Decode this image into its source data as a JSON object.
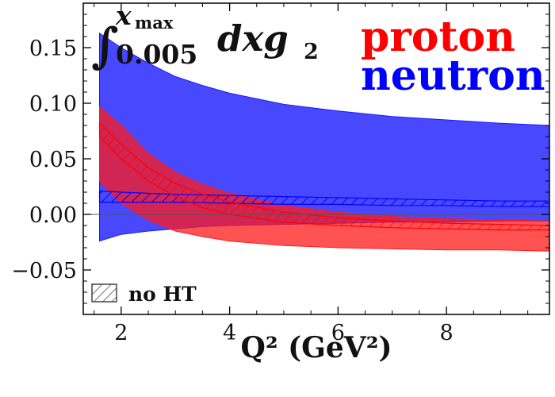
{
  "chart_data": {
    "type": "area",
    "title_expression": {
      "integral_sign": "∫",
      "upper_limit": "x",
      "upper_limit_sub": "max",
      "lower_limit": "0.005",
      "integrand": "dxg",
      "integrand_sub": "2"
    },
    "xlabel": "Q² (GeV²)",
    "ylabel": "",
    "xlim": [
      1.3,
      9.9
    ],
    "ylim": [
      -0.09,
      0.19
    ],
    "xticks": [
      2,
      4,
      6,
      8
    ],
    "xtick_labels": [
      "2",
      "4",
      "6",
      "8"
    ],
    "yticks": [
      -0.05,
      0.0,
      0.05,
      0.1,
      0.15
    ],
    "ytick_labels": [
      "−0.05",
      "0.00",
      "0.05",
      "0.10",
      "0.15"
    ],
    "zero_line": true,
    "grid": false,
    "legend": {
      "placement": "top-right",
      "entries": [
        {
          "label": "proton",
          "color": "#ff0000"
        },
        {
          "label": "neutron",
          "color": "#0000ff"
        }
      ]
    },
    "hatch_legend": {
      "label": "no HT",
      "placement": "bottom-left"
    },
    "series": [
      {
        "name": "neutron",
        "style": "band",
        "color": "#1a1aff",
        "x": [
          1.6,
          2.0,
          2.5,
          3.0,
          3.5,
          4.0,
          5.0,
          6.0,
          7.0,
          8.0,
          9.0,
          9.9
        ],
        "upper": [
          0.163,
          0.15,
          0.136,
          0.124,
          0.116,
          0.109,
          0.099,
          0.093,
          0.088,
          0.085,
          0.082,
          0.08
        ],
        "lower": [
          -0.024,
          -0.018,
          -0.015,
          -0.013,
          -0.011,
          -0.01,
          -0.009,
          -0.008,
          -0.007,
          -0.007,
          -0.006,
          -0.006
        ]
      },
      {
        "name": "proton",
        "style": "band",
        "color": "#ff1a1a",
        "x": [
          1.6,
          2.0,
          2.5,
          3.0,
          3.5,
          4.0,
          5.0,
          6.0,
          7.0,
          8.0,
          9.0,
          9.9
        ],
        "upper": [
          0.097,
          0.08,
          0.055,
          0.038,
          0.027,
          0.019,
          0.008,
          0.002,
          -0.002,
          -0.004,
          -0.005,
          -0.006
        ],
        "lower": [
          0.03,
          0.01,
          -0.005,
          -0.015,
          -0.02,
          -0.024,
          -0.028,
          -0.03,
          -0.031,
          -0.032,
          -0.032,
          -0.033
        ]
      },
      {
        "name": "neutron (no HT)",
        "style": "hatched",
        "color": "#0000ff",
        "x": [
          1.6,
          2.0,
          3.0,
          4.0,
          5.0,
          6.0,
          7.0,
          8.0,
          9.0,
          9.9
        ],
        "upper": [
          0.021,
          0.02,
          0.018,
          0.017,
          0.016,
          0.015,
          0.014,
          0.013,
          0.012,
          0.012
        ],
        "lower": [
          0.011,
          0.011,
          0.011,
          0.01,
          0.009,
          0.009,
          0.008,
          0.008,
          0.007,
          0.007
        ]
      },
      {
        "name": "proton (no HT)",
        "style": "hatched",
        "color": "#ff0000",
        "x": [
          1.6,
          2.0,
          2.5,
          3.0,
          3.5,
          4.0,
          5.0,
          6.0,
          7.0,
          8.0,
          9.0,
          9.9
        ],
        "upper": [
          0.082,
          0.063,
          0.042,
          0.028,
          0.018,
          0.011,
          0.002,
          -0.003,
          -0.006,
          -0.008,
          -0.009,
          -0.01
        ],
        "lower": [
          0.07,
          0.05,
          0.03,
          0.016,
          0.006,
          0.0,
          -0.007,
          -0.01,
          -0.012,
          -0.013,
          -0.014,
          -0.014
        ]
      }
    ]
  }
}
